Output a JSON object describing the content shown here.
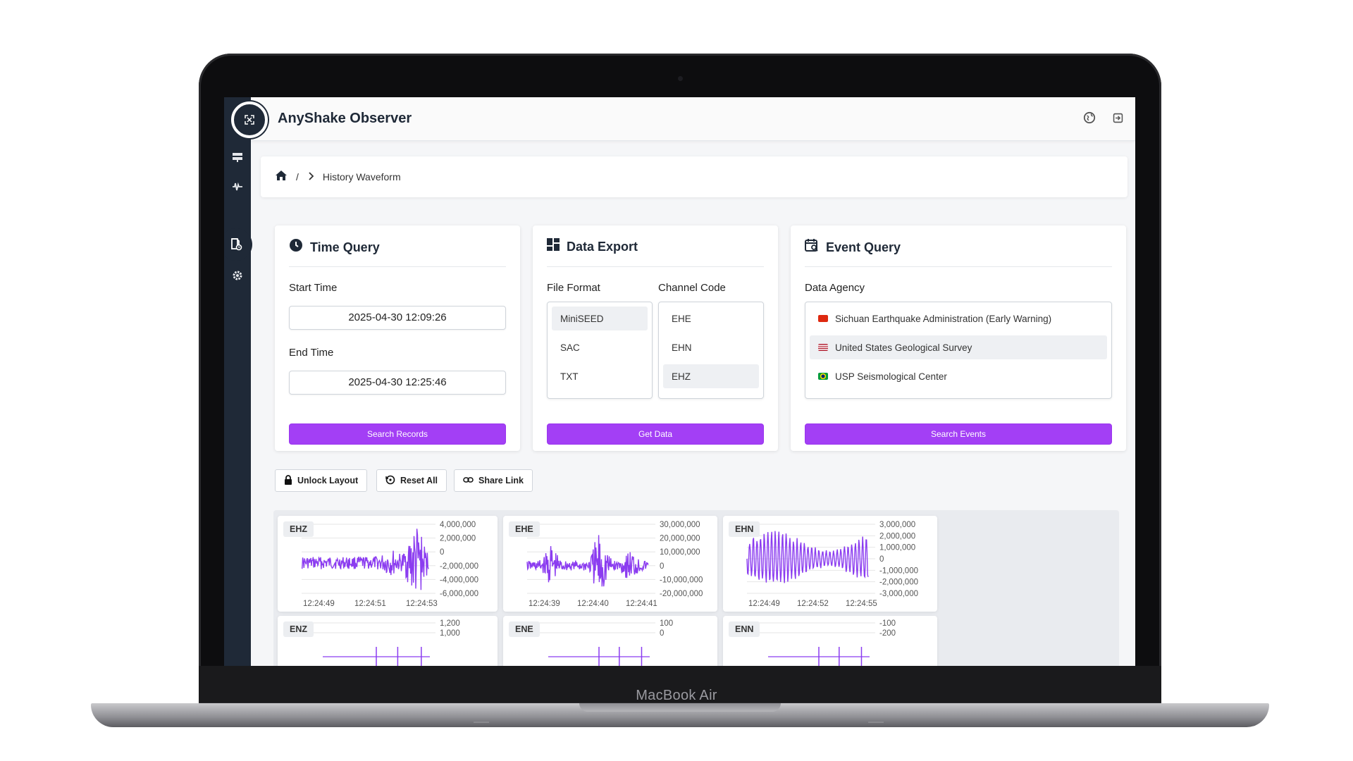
{
  "device": {
    "label": "MacBook Air"
  },
  "app": {
    "title": "AnyShake Observer"
  },
  "header": {
    "icons": [
      "globe-icon",
      "logout-icon"
    ]
  },
  "sidebar": {
    "items": [
      "station-icon",
      "waveform-icon",
      "history-icon",
      "database-icon",
      "settings-icon"
    ],
    "active": "history-icon"
  },
  "breadcrumb": {
    "sep1": "/",
    "sep2": "›",
    "current": "History Waveform"
  },
  "time_query": {
    "title": "Time Query",
    "start_label": "Start Time",
    "start_value": "2025-04-30 12:09:26",
    "end_label": "End Time",
    "end_value": "2025-04-30 12:25:46",
    "button": "Search Records"
  },
  "data_export": {
    "title": "Data Export",
    "format_label": "File Format",
    "channel_label": "Channel Code",
    "formats": [
      "MiniSEED",
      "SAC",
      "TXT"
    ],
    "selected_format": "MiniSEED",
    "channels": [
      "EHE",
      "EHN",
      "EHZ"
    ],
    "selected_channel": "EHZ",
    "button": "Get Data"
  },
  "event_query": {
    "title": "Event Query",
    "agency_label": "Data Agency",
    "agencies": [
      "Sichuan Earthquake Administration (Early Warning)",
      "United States Geological Survey",
      "USP Seismological Center"
    ],
    "selected_agency": "United States Geological Survey",
    "button": "Search Events"
  },
  "toolbar": {
    "unlock": "Unlock Layout",
    "reset": "Reset All",
    "share": "Share Link"
  },
  "colors": {
    "accent": "#a33ff5",
    "sidebar": "#1f2937",
    "waveform": "#8b3cf0"
  },
  "charts": [
    {
      "channel": "EHZ",
      "y_ticks": [
        "4,000,000",
        "2,000,000",
        "0",
        "-2,000,000",
        "-4,000,000",
        "-6,000,000"
      ],
      "x_ticks": [
        "12:24:49",
        "12:24:51",
        "12:24:53"
      ]
    },
    {
      "channel": "EHE",
      "y_ticks": [
        "30,000,000",
        "20,000,000",
        "10,000,000",
        "0",
        "-10,000,000",
        "-20,000,000"
      ],
      "x_ticks": [
        "12:24:39",
        "12:24:40",
        "12:24:41"
      ]
    },
    {
      "channel": "EHN",
      "y_ticks": [
        "3,000,000",
        "2,000,000",
        "1,000,000",
        "0",
        "-1,000,000",
        "-2,000,000",
        "-3,000,000"
      ],
      "x_ticks": [
        "12:24:49",
        "12:24:52",
        "12:24:55"
      ]
    },
    {
      "channel": "ENZ",
      "y_ticks": [
        "1,200",
        "1,000"
      ],
      "x_ticks": []
    },
    {
      "channel": "ENE",
      "y_ticks": [
        "100",
        "0"
      ],
      "x_ticks": []
    },
    {
      "channel": "ENN",
      "y_ticks": [
        "-100",
        "-200"
      ],
      "x_ticks": []
    }
  ]
}
